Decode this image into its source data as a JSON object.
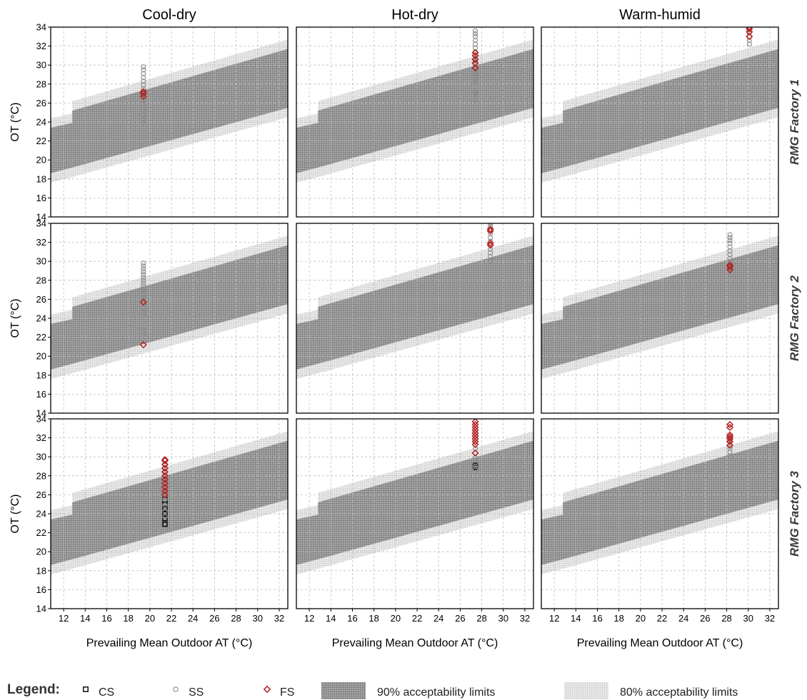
{
  "chart_data": {
    "type": "scatter",
    "columns": [
      "Cool-dry",
      "Hot-dry",
      "Warm-humid"
    ],
    "rows": [
      "RMG Factory 1",
      "RMG Factory 2",
      "RMG Factory 3"
    ],
    "xlabel": "Prevailing Mean Outdoor AT (°C)",
    "ylabel": "OT (°C)",
    "xlim": [
      10.8,
      32.8
    ],
    "ylim": [
      14,
      34
    ],
    "xticks": [
      12,
      14,
      16,
      18,
      20,
      22,
      24,
      26,
      28,
      30,
      32
    ],
    "yticks": [
      14,
      16,
      18,
      20,
      22,
      24,
      26,
      28,
      30,
      32,
      34
    ],
    "grid": true,
    "bands": {
      "limit90": {
        "x": [
          10.8,
          12.8,
          12.8,
          32.8
        ],
        "upper": [
          23.4,
          23.9,
          25.2,
          31.7
        ],
        "lower": [
          18.6,
          19.2,
          19.2,
          25.5
        ]
      },
      "limit80": {
        "x": [
          10.8,
          12.8,
          12.8,
          32.8
        ],
        "upper": [
          24.4,
          24.9,
          26.2,
          32.7
        ],
        "lower": [
          17.6,
          18.2,
          18.2,
          24.5
        ]
      }
    },
    "panels": [
      {
        "row": "RMG Factory 1",
        "column": "Cool-dry",
        "series": [
          {
            "name": "SS",
            "x": 19.4,
            "y": [
              23.9,
              24.3,
              24.7,
              25.1,
              25.5,
              25.9,
              26.3,
              26.7,
              27.1,
              27.5,
              27.9,
              28.3,
              28.7,
              29.1,
              29.5,
              29.8
            ]
          },
          {
            "name": "FS",
            "x": 19.4,
            "y": [
              26.7,
              27.0,
              27.2
            ]
          }
        ]
      },
      {
        "row": "RMG Factory 1",
        "column": "Hot-dry",
        "series": [
          {
            "name": "SS",
            "x": 27.4,
            "y": [
              26.3,
              27.0,
              27.2,
              28.0,
              28.3,
              28.6,
              28.9,
              29.2,
              29.5,
              29.8,
              30.1,
              30.4,
              30.7,
              31.0,
              31.4,
              31.8,
              32.2,
              32.6,
              33.0,
              33.3,
              33.6
            ]
          },
          {
            "name": "FS",
            "x": 27.4,
            "y": [
              29.7,
              30.2,
              30.6,
              31.0,
              31.3
            ]
          }
        ]
      },
      {
        "row": "RMG Factory 1",
        "column": "Warm-humid",
        "series": [
          {
            "name": "SS",
            "x": 30.1,
            "y": [
              32.2,
              32.6,
              33.0,
              33.4,
              33.8
            ]
          },
          {
            "name": "FS",
            "x": 30.1,
            "y": [
              33.0,
              33.5,
              33.8,
              34.0
            ]
          }
        ]
      },
      {
        "row": "RMG Factory 2",
        "column": "Cool-dry",
        "series": [
          {
            "name": "SS",
            "x": 19.4,
            "y": [
              22.3,
              22.7,
              24.3,
              24.7,
              25.1,
              25.5,
              25.9,
              26.2,
              26.5,
              26.8,
              27.1,
              27.4,
              27.7,
              28.0,
              28.3,
              28.6,
              28.9,
              29.2,
              29.5,
              29.8
            ]
          },
          {
            "name": "FS",
            "x": 19.4,
            "y": [
              21.2,
              25.7
            ]
          }
        ]
      },
      {
        "row": "RMG Factory 2",
        "column": "Hot-dry",
        "series": [
          {
            "name": "SS",
            "x": 28.8,
            "y": [
              30.1,
              30.5,
              30.9,
              31.3,
              31.7,
              32.1,
              32.5,
              32.9,
              33.3,
              33.7,
              34.0
            ]
          },
          {
            "name": "FS",
            "x": 28.8,
            "y": [
              31.7,
              31.9,
              33.2,
              33.4
            ]
          }
        ]
      },
      {
        "row": "RMG Factory 2",
        "column": "Warm-humid",
        "series": [
          {
            "name": "SS",
            "x": 28.3,
            "y": [
              29.5,
              29.9,
              30.3,
              30.7,
              31.1,
              31.5,
              31.9,
              32.2,
              32.5,
              32.8
            ]
          },
          {
            "name": "FS",
            "x": 28.3,
            "y": [
              29.1,
              29.4,
              29.6
            ]
          }
        ]
      },
      {
        "row": "RMG Factory 3",
        "column": "Cool-dry",
        "series": [
          {
            "name": "CS",
            "x": 21.4,
            "y": [
              22.9,
              23.5,
              24.0,
              24.5,
              25.0,
              25.5
            ]
          },
          {
            "name": "SS",
            "x": 21.4,
            "y": [
              23.7,
              24.3,
              24.9,
              25.5,
              26.1,
              26.7,
              27.3,
              27.9,
              28.5,
              29.1
            ]
          },
          {
            "name": "FS",
            "x": 21.4,
            "y": [
              26.0,
              26.4,
              26.8,
              27.2,
              27.6,
              28.0,
              28.4,
              28.8,
              29.2,
              29.6,
              29.7
            ]
          }
        ]
      },
      {
        "row": "RMG Factory 3",
        "column": "Hot-dry",
        "series": [
          {
            "name": "CS",
            "x": 27.4,
            "y": [
              28.9,
              29.1
            ]
          },
          {
            "name": "SS",
            "x": 27.4,
            "y": [
              28.7,
              29.0,
              29.4,
              29.9,
              30.4,
              30.9
            ]
          },
          {
            "name": "FS",
            "x": 27.4,
            "y": [
              30.4,
              31.3,
              31.6,
              31.9,
              32.2,
              32.5,
              32.8,
              33.1,
              33.4,
              33.7
            ]
          }
        ]
      },
      {
        "row": "RMG Factory 3",
        "column": "Warm-humid",
        "series": [
          {
            "name": "SS",
            "x": 28.3,
            "y": [
              30.1,
              30.5,
              30.9,
              31.3,
              31.7
            ]
          },
          {
            "name": "FS",
            "x": 28.3,
            "y": [
              31.2,
              31.6,
              31.9,
              32.1,
              32.3,
              33.1,
              33.4
            ]
          }
        ]
      }
    ],
    "legend": {
      "title": "Legend:",
      "placement": "bottom",
      "items": [
        {
          "key": "CS",
          "label": "CS",
          "marker": "square",
          "color": "#000000"
        },
        {
          "key": "SS",
          "label": "SS",
          "marker": "circle",
          "color": "#8a8a8a"
        },
        {
          "key": "FS",
          "label": "FS",
          "marker": "diamond",
          "color": "#b22222"
        },
        {
          "key": "limit90",
          "label": "90% acceptability limits",
          "marker": "band",
          "color": "#9a9a9a"
        },
        {
          "key": "limit80",
          "label": "80% acceptability limits",
          "marker": "band",
          "color": "#e4e4e4"
        }
      ]
    }
  }
}
